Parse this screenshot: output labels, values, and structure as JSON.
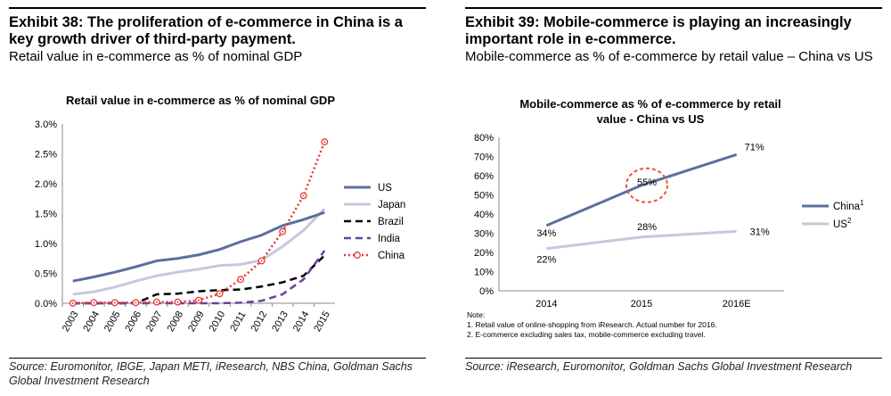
{
  "exhibits": [
    {
      "title_bold": "Exhibit 38: The proliferation of e-commerce in China is a key growth driver of third-party payment.",
      "subtitle": "Retail value in e-commerce as % of nominal GDP",
      "source": "Source: Euromonitor, IBGE, Japan METI, iResearch, NBS China, Goldman Sachs Global Investment Research"
    },
    {
      "title_bold": "Exhibit 39: Mobile-commerce is playing an increasingly important role in e-commerce.",
      "subtitle": "Mobile-commerce as % of e-commerce by retail value – China vs US",
      "source": "Source: iResearch, Euromonitor, Goldman Sachs Global Investment Research"
    }
  ],
  "chart_data": [
    {
      "type": "line",
      "title": "Retail value in e-commerce as % of nominal GDP",
      "x": [
        "2003",
        "2004",
        "2005",
        "2006",
        "2007",
        "2008",
        "2009",
        "2010",
        "2011",
        "2012",
        "2013",
        "2014",
        "2015"
      ],
      "ylim": [
        0,
        3.0
      ],
      "yticks": [
        "0.0%",
        "0.5%",
        "1.0%",
        "1.5%",
        "2.0%",
        "2.5%",
        "3.0%"
      ],
      "legend_position": "right",
      "series": [
        {
          "name": "US",
          "color": "#5b6f9e",
          "style": "solid",
          "values": [
            0.37,
            0.44,
            0.52,
            0.61,
            0.71,
            0.75,
            0.81,
            0.9,
            1.03,
            1.14,
            1.3,
            1.4,
            1.52
          ]
        },
        {
          "name": "Japan",
          "color": "#c5c8dc",
          "style": "solid",
          "values": [
            0.15,
            0.19,
            0.27,
            0.37,
            0.46,
            0.52,
            0.57,
            0.63,
            0.65,
            0.72,
            0.95,
            1.22,
            1.58
          ]
        },
        {
          "name": "Brazil",
          "color": "#000000",
          "style": "dashed",
          "values": [
            0.0,
            0.0,
            0.0,
            0.0,
            0.15,
            0.16,
            0.2,
            0.22,
            0.23,
            0.28,
            0.35,
            0.46,
            0.8
          ]
        },
        {
          "name": "India",
          "color": "#6b3fa0",
          "style": "dashed",
          "values": [
            0.0,
            0.0,
            0.0,
            0.0,
            0.0,
            0.0,
            0.0,
            0.0,
            0.01,
            0.04,
            0.15,
            0.4,
            0.88
          ]
        },
        {
          "name": "China",
          "color": "#e53935",
          "style": "dotted",
          "markers": true,
          "values": [
            0.0,
            0.01,
            0.01,
            0.01,
            0.02,
            0.02,
            0.05,
            0.16,
            0.4,
            0.71,
            1.2,
            1.8,
            2.7
          ]
        }
      ]
    },
    {
      "type": "line",
      "title": "Mobile-commerce as % of e-commerce by retail value - China vs US",
      "x": [
        "2014",
        "2015",
        "2016E"
      ],
      "ylim": [
        0,
        80
      ],
      "yticks": [
        "0%",
        "10%",
        "20%",
        "30%",
        "40%",
        "50%",
        "60%",
        "70%",
        "80%"
      ],
      "legend_position": "right",
      "series": [
        {
          "name": "China",
          "sup": "1",
          "color": "#5b6f9e",
          "values": [
            34,
            55,
            71
          ],
          "labels": [
            "34%",
            "55%",
            "71%"
          ]
        },
        {
          "name": "US",
          "sup": "2",
          "color": "#c5c8dc",
          "values": [
            22,
            28,
            31
          ],
          "labels": [
            "22%",
            "28%",
            "31%"
          ]
        }
      ],
      "highlight": {
        "label": "55%",
        "color": "#e8543a"
      },
      "notes": [
        "Note:",
        "1. Retail value of online-shopping from iResearch. Actual number for 2016.",
        "2. E-commerce excluding sales tax, mobile-commerce excluding travel."
      ]
    }
  ]
}
